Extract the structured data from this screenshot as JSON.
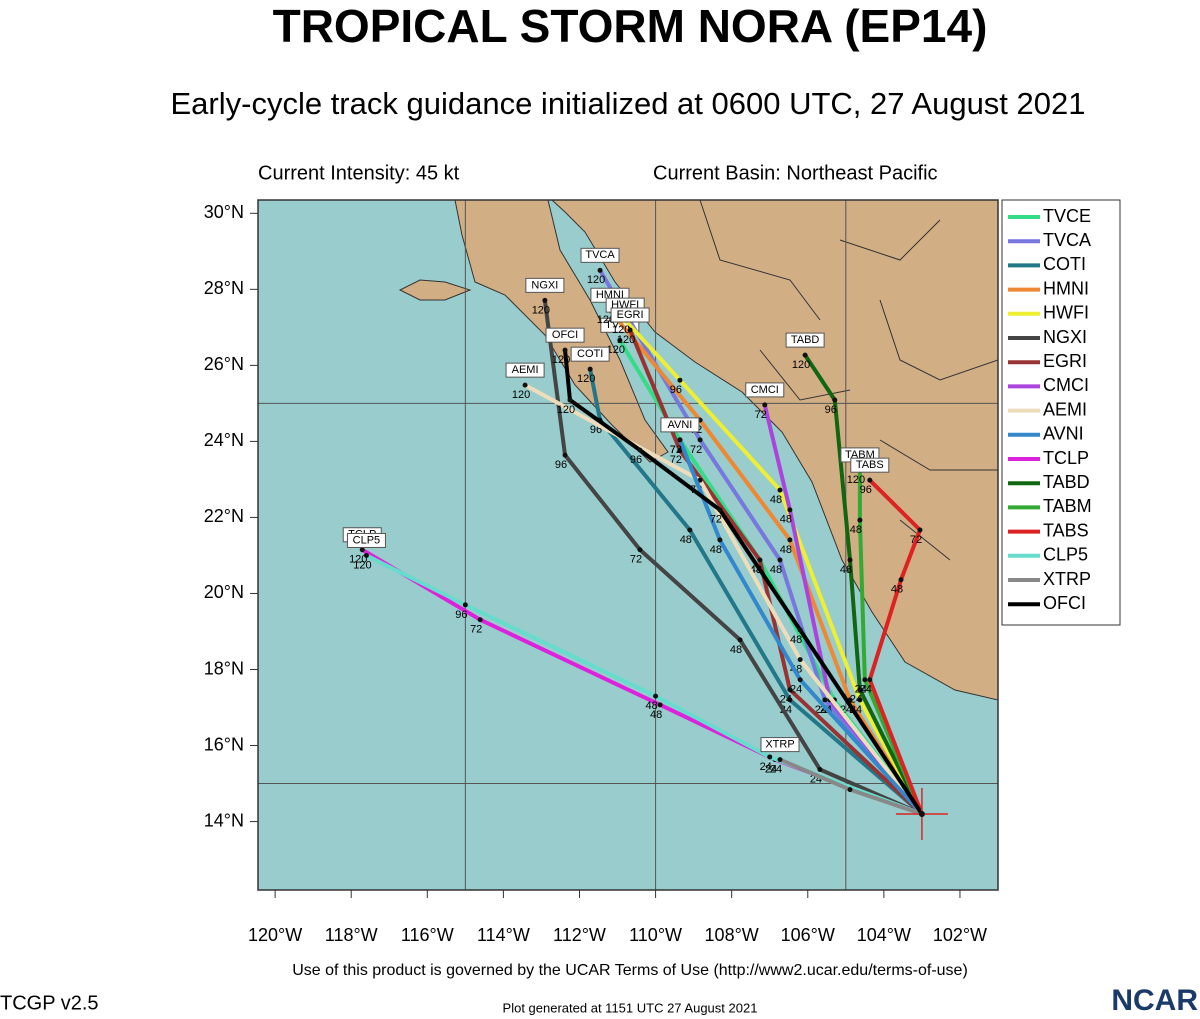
{
  "chart_data": {
    "type": "track-map",
    "title": "TROPICAL STORM NORA (EP14)",
    "subtitle": "Early-cycle track guidance initialized at 0600 UTC, 27 August 2021",
    "intensity": "Current Intensity: 45 kt",
    "basin": "Current Basin: Northeast Pacific",
    "xlim": [
      -120.45,
      -101
    ],
    "ylim": [
      12.2,
      30.35
    ],
    "xticks": [
      {
        "value": -120,
        "label": "120°W"
      },
      {
        "value": -118,
        "label": "118°W"
      },
      {
        "value": -116,
        "label": "116°W"
      },
      {
        "value": -114,
        "label": "114°W"
      },
      {
        "value": -112,
        "label": "112°W"
      },
      {
        "value": -110,
        "label": "110°W"
      },
      {
        "value": -108,
        "label": "108°W"
      },
      {
        "value": -106,
        "label": "106°W"
      },
      {
        "value": -104,
        "label": "104°W"
      },
      {
        "value": -102,
        "label": "102°W"
      }
    ],
    "yticks": [
      {
        "value": 14,
        "label": "14°N"
      },
      {
        "value": 16,
        "label": "16°N"
      },
      {
        "value": 18,
        "label": "18°N"
      },
      {
        "value": 20,
        "label": "20°N"
      },
      {
        "value": 22,
        "label": "22°N"
      },
      {
        "value": 24,
        "label": "24°N"
      },
      {
        "value": 26,
        "label": "26°N"
      },
      {
        "value": 28,
        "label": "28°N"
      },
      {
        "value": 30,
        "label": "30°N"
      }
    ],
    "grid_lon": [
      -115,
      -110,
      -105
    ],
    "grid_lat": [
      15,
      25
    ],
    "storm_position": {
      "lon": -103.0,
      "lat": 14.2
    },
    "series": [
      {
        "name": "TVCE",
        "color": "#33dd88",
        "lon": [
          -103.0,
          -105.3,
          -107.26,
          -109.36,
          -110.94
        ],
        "lat": [
          14.2,
          17.2,
          20.88,
          24.04,
          26.66
        ],
        "hours": [
          null,
          "24",
          "48",
          "72",
          "120"
        ]
      },
      {
        "name": "TVCA",
        "color": "#7777dd",
        "lon": [
          -103.0,
          -105.55,
          -106.73,
          -108.83,
          -111.46
        ],
        "lat": [
          14.2,
          17.2,
          20.88,
          24.04,
          28.5
        ],
        "hours": [
          null,
          "24",
          "48",
          "72",
          "120"
        ]
      },
      {
        "name": "COTI",
        "color": "#227788",
        "lon": [
          -103.0,
          -106.47,
          -109.1,
          -111.46,
          -111.72
        ],
        "lat": [
          14.2,
          17.2,
          21.67,
          24.56,
          25.9
        ],
        "hours": [
          null,
          "24",
          "48",
          "96",
          "120"
        ]
      },
      {
        "name": "HMNI",
        "color": "#ee8833",
        "lon": [
          -103.0,
          -104.89,
          -106.47,
          -108.83,
          -111.2
        ],
        "lat": [
          14.2,
          17.2,
          21.41,
          24.56,
          27.45
        ],
        "hours": [
          null,
          "24",
          "48",
          "72",
          "120"
        ]
      },
      {
        "name": "HWFI",
        "color": "#eeee33",
        "lon": [
          -103.0,
          -104.63,
          -106.73,
          -109.36,
          -110.8
        ],
        "lat": [
          14.2,
          17.2,
          22.72,
          25.61,
          27.19
        ],
        "hours": [
          null,
          "24",
          "48",
          "96",
          "120"
        ]
      },
      {
        "name": "NGXI",
        "color": "#444444",
        "lon": [
          -103.0,
          -105.68,
          -107.78,
          -110.41,
          -112.38,
          -112.91
        ],
        "lat": [
          14.2,
          15.37,
          18.78,
          21.15,
          23.64,
          27.71
        ],
        "hours": [
          null,
          "24",
          "48",
          "72",
          "96",
          "120"
        ]
      },
      {
        "name": "EGRI",
        "color": "#993333",
        "lon": [
          -103.0,
          -106.47,
          -107.26,
          -109.36,
          -110.67
        ],
        "lat": [
          14.2,
          17.47,
          20.88,
          23.77,
          26.93
        ],
        "hours": [
          null,
          "24",
          "48",
          "72",
          "120"
        ]
      },
      {
        "name": "CMCI",
        "color": "#aa44dd",
        "lon": [
          -103.0,
          -105.42,
          -106.47,
          -107.13
        ],
        "lat": [
          14.2,
          17.2,
          22.2,
          24.96
        ],
        "hours": [
          null,
          "24",
          "48",
          "72"
        ]
      },
      {
        "name": "AEMI",
        "color": "#eeddbb",
        "lon": [
          -103.0,
          -106.2,
          -108.83,
          -113.43
        ],
        "lat": [
          14.2,
          18.26,
          22.98,
          25.48
        ],
        "hours": [
          null,
          "48",
          "72",
          "120"
        ]
      },
      {
        "name": "AVNI",
        "color": "#3388cc",
        "lon": [
          -103.0,
          -106.2,
          -108.31,
          -109.36
        ],
        "lat": [
          14.2,
          17.73,
          21.41,
          24.04
        ],
        "hours": [
          null,
          "24",
          "48",
          "72"
        ]
      },
      {
        "name": "TCLP",
        "color": "#dd22dd",
        "lon": [
          -103.0,
          -106.86,
          -109.88,
          -114.61,
          -117.71
        ],
        "lat": [
          14.2,
          15.63,
          17.07,
          19.31,
          21.15
        ],
        "hours": [
          null,
          "24",
          "48",
          "72",
          "120"
        ]
      },
      {
        "name": "TABD",
        "color": "#116611",
        "lon": [
          -103.0,
          -104.63,
          -104.89,
          -105.29,
          -106.07
        ],
        "lat": [
          14.2,
          17.47,
          20.88,
          25.09,
          26.27
        ],
        "hours": [
          null,
          "24",
          "48",
          "96",
          "120"
        ]
      },
      {
        "name": "TABM",
        "color": "#33aa33",
        "lon": [
          -103.0,
          -104.5,
          -104.63,
          -104.63
        ],
        "lat": [
          14.2,
          17.73,
          21.93,
          23.25
        ],
        "hours": [
          null,
          "24",
          "48",
          "120"
        ]
      },
      {
        "name": "TABS",
        "color": "#dd2222",
        "lon": [
          -103.0,
          -104.37,
          -103.55,
          -103.05,
          -104.37
        ],
        "lat": [
          14.2,
          17.73,
          20.36,
          21.67,
          22.98
        ],
        "hours": [
          null,
          "24",
          "48",
          "72",
          "96"
        ]
      },
      {
        "name": "CLP5",
        "color": "#66ddcc",
        "lon": [
          -103.0,
          -107.0,
          -110.0,
          -115.0,
          -117.6
        ],
        "lat": [
          14.2,
          15.7,
          17.3,
          19.7,
          21.0
        ],
        "hours": [
          null,
          "24",
          "48",
          "96",
          "120"
        ]
      },
      {
        "name": "XTRP",
        "color": "#888888",
        "lon": [
          -103.0,
          -104.89,
          -106.73
        ],
        "lat": [
          14.2,
          14.84,
          15.63
        ],
        "hours": [
          null,
          null,
          "24"
        ]
      },
      {
        "name": "OFCI",
        "color": "#000000",
        "lon": [
          -103.0,
          -106.2,
          -108.31,
          -110.41,
          -112.25,
          -112.38
        ],
        "lat": [
          14.2,
          19.04,
          22.2,
          23.77,
          25.09,
          26.4
        ],
        "hours": [
          null,
          "48",
          "72",
          "96",
          "120",
          "120"
        ]
      }
    ],
    "terms": "Use of this product is governed by the UCAR Terms of Use (http://www2.ucar.edu/terms-of-use)",
    "version": "TCGP v2.5",
    "generated": "Plot generated at 1151 UTC   27 August 2021",
    "logo": "NCAR"
  }
}
